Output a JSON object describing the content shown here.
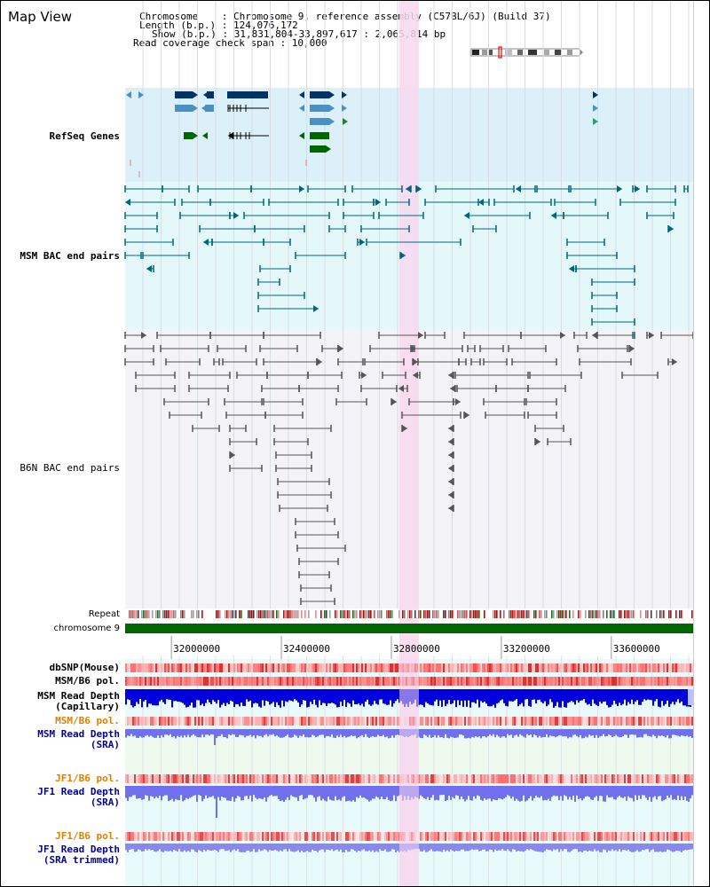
{
  "title": "Map View",
  "info": {
    "line1": "Chromosome    : Chromosome 9, reference assembly (C57BL/6J) (Build 37)",
    "line2": "Length (b.p.) : 124,076,172",
    "line3": "Show (b.p.) : 31,831,804-33,897,617 : 2,065,814 bp",
    "line4": "Read coverage check span : 10,000"
  },
  "tracks": {
    "refseq": "RefSeq Genes",
    "msm_bac": "MSM BAC end pairs",
    "b6n_bac": "B6N BAC end pairs",
    "repeat": "Repeat",
    "chrom": "chromosome 9",
    "dbsnp": "dbSNP(Mouse)",
    "msm_b6_pol": "MSM/B6 pol.",
    "msm_depth_cap_1": "MSM Read Depth",
    "msm_depth_cap_2": "(Capillary)",
    "msm_b6_pol2": "MSM/B6 pol.",
    "msm_depth_sra_1": "MSM Read Depth",
    "msm_depth_sra_2": "(SRA)",
    "jf1_b6_pol": "JF1/B6 pol.",
    "jf1_depth_sra_1": "JF1 Read Depth",
    "jf1_depth_sra_2": "(SRA)",
    "jf1_b6_pol2": "JF1/B6 pol.",
    "jf1_depth_trim_1": "JF1 Read Depth",
    "jf1_depth_trim_2": "(SRA trimmed)"
  },
  "axis": {
    "ticks": [
      "32000000",
      "32400000",
      "32800000",
      "33200000",
      "33600000"
    ],
    "tick_values": [
      32000000,
      32400000,
      32800000,
      33200000,
      33600000
    ],
    "view_start": 31831804,
    "view_end": 33897617
  },
  "colors": {
    "refseq_bg": "#dcf0fa",
    "msm_bg": "#e4f8fa",
    "gray_bg": "#f4f4f8",
    "highlight": "#f8d8f0",
    "refseq_dark": "#003366",
    "refseq_mid": "#4a90c0",
    "refseq_green": "#006600",
    "msm_color": "#006680",
    "b6n_color": "#555555",
    "chrom_green": "#006600",
    "label_blue": "#000099",
    "label_msm": "#005577",
    "label_orange": "#e08000",
    "label_gray": "#333333",
    "depth_blue": "#0000dd",
    "depth_light": "#7070ee"
  }
}
